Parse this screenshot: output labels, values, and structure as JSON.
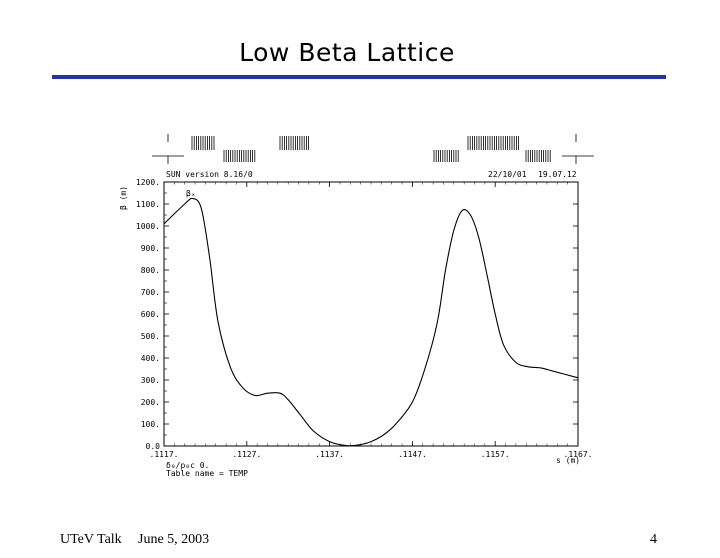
{
  "slide": {
    "title": "Low Beta Lattice",
    "footer_left": "UTeV Talk",
    "footer_date": "June 5, 2003",
    "page_number": "4"
  },
  "plot_header": {
    "program": "SUN version 8.16/0",
    "date": "22/10/01",
    "time": "19.07.12",
    "table_name": "Table name = TEMP",
    "footnote": "δ₀/p₀c  0."
  },
  "colors": {
    "title_rule": "#2233aa",
    "curve": "#000000"
  },
  "chart_data": {
    "type": "line",
    "title": "",
    "xlabel": "s (m)",
    "ylabel": "β (m)",
    "series_label": "βₓ",
    "xlim": [
      0,
      1
    ],
    "ylim": [
      0,
      1200
    ],
    "x_tick_labels": [
      ".1117.",
      ".1127.",
      ".1137.",
      ".1147.",
      ".1157.",
      ".1167."
    ],
    "y_tick_labels": [
      "0.0",
      "100.",
      "200.",
      "300.",
      "400.",
      "500.",
      "600.",
      "700.",
      "800.",
      "900.",
      "1000.",
      "1100.",
      "1200."
    ],
    "series": [
      {
        "name": "βₓ",
        "x": [
          0.0,
          0.05,
          0.07,
          0.09,
          0.11,
          0.13,
          0.16,
          0.19,
          0.22,
          0.25,
          0.28,
          0.3,
          0.33,
          0.36,
          0.4,
          0.44,
          0.47,
          0.5,
          0.53,
          0.56,
          0.6,
          0.63,
          0.66,
          0.68,
          0.7,
          0.72,
          0.74,
          0.76,
          0.78,
          0.8,
          0.82,
          0.85,
          0.88,
          0.91,
          0.94,
          1.0
        ],
        "values": [
          1010,
          1100,
          1125,
          1080,
          860,
          570,
          360,
          265,
          230,
          240,
          240,
          210,
          140,
          70,
          20,
          2,
          5,
          20,
          50,
          100,
          200,
          350,
          560,
          800,
          980,
          1070,
          1050,
          950,
          780,
          600,
          460,
          380,
          360,
          355,
          340,
          310
        ]
      }
    ]
  }
}
